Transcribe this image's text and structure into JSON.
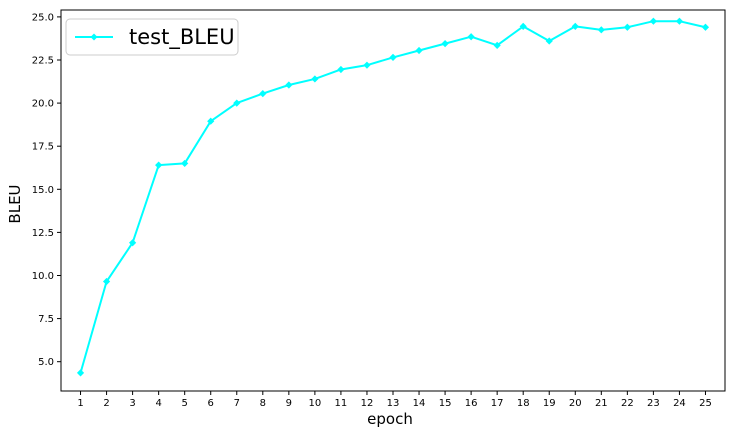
{
  "chart_data": {
    "type": "line",
    "xlabel": "epoch",
    "ylabel": "BLEU",
    "x": [
      1,
      2,
      3,
      4,
      5,
      6,
      7,
      8,
      9,
      10,
      11,
      12,
      13,
      14,
      15,
      16,
      17,
      18,
      19,
      20,
      21,
      22,
      23,
      24,
      25
    ],
    "series": [
      {
        "name": "test_BLEU",
        "color": "#00ffff",
        "marker": "diamond",
        "values": [
          4.35,
          9.65,
          11.9,
          16.4,
          16.5,
          18.95,
          20.0,
          20.55,
          21.05,
          21.4,
          21.95,
          22.2,
          22.65,
          23.05,
          23.45,
          23.85,
          23.35,
          24.45,
          23.6,
          24.45,
          24.25,
          24.4,
          24.75,
          24.75,
          24.4
        ]
      }
    ],
    "xlim": [
      0.25,
      25.75
    ],
    "ylim": [
      3.3,
      25.4
    ],
    "yticks": [
      5.0,
      7.5,
      10.0,
      12.5,
      15.0,
      17.5,
      20.0,
      22.5,
      25.0
    ],
    "ytick_labels": [
      "5.0",
      "7.5",
      "10.0",
      "12.5",
      "15.0",
      "17.5",
      "20.0",
      "22.5",
      "25.0"
    ],
    "xtick_labels": [
      "1",
      "2",
      "3",
      "4",
      "5",
      "6",
      "7",
      "8",
      "9",
      "10",
      "11",
      "12",
      "13",
      "14",
      "15",
      "16",
      "17",
      "18",
      "19",
      "20",
      "21",
      "22",
      "23",
      "24",
      "25"
    ],
    "legend_position": "top-left",
    "grid": false
  }
}
